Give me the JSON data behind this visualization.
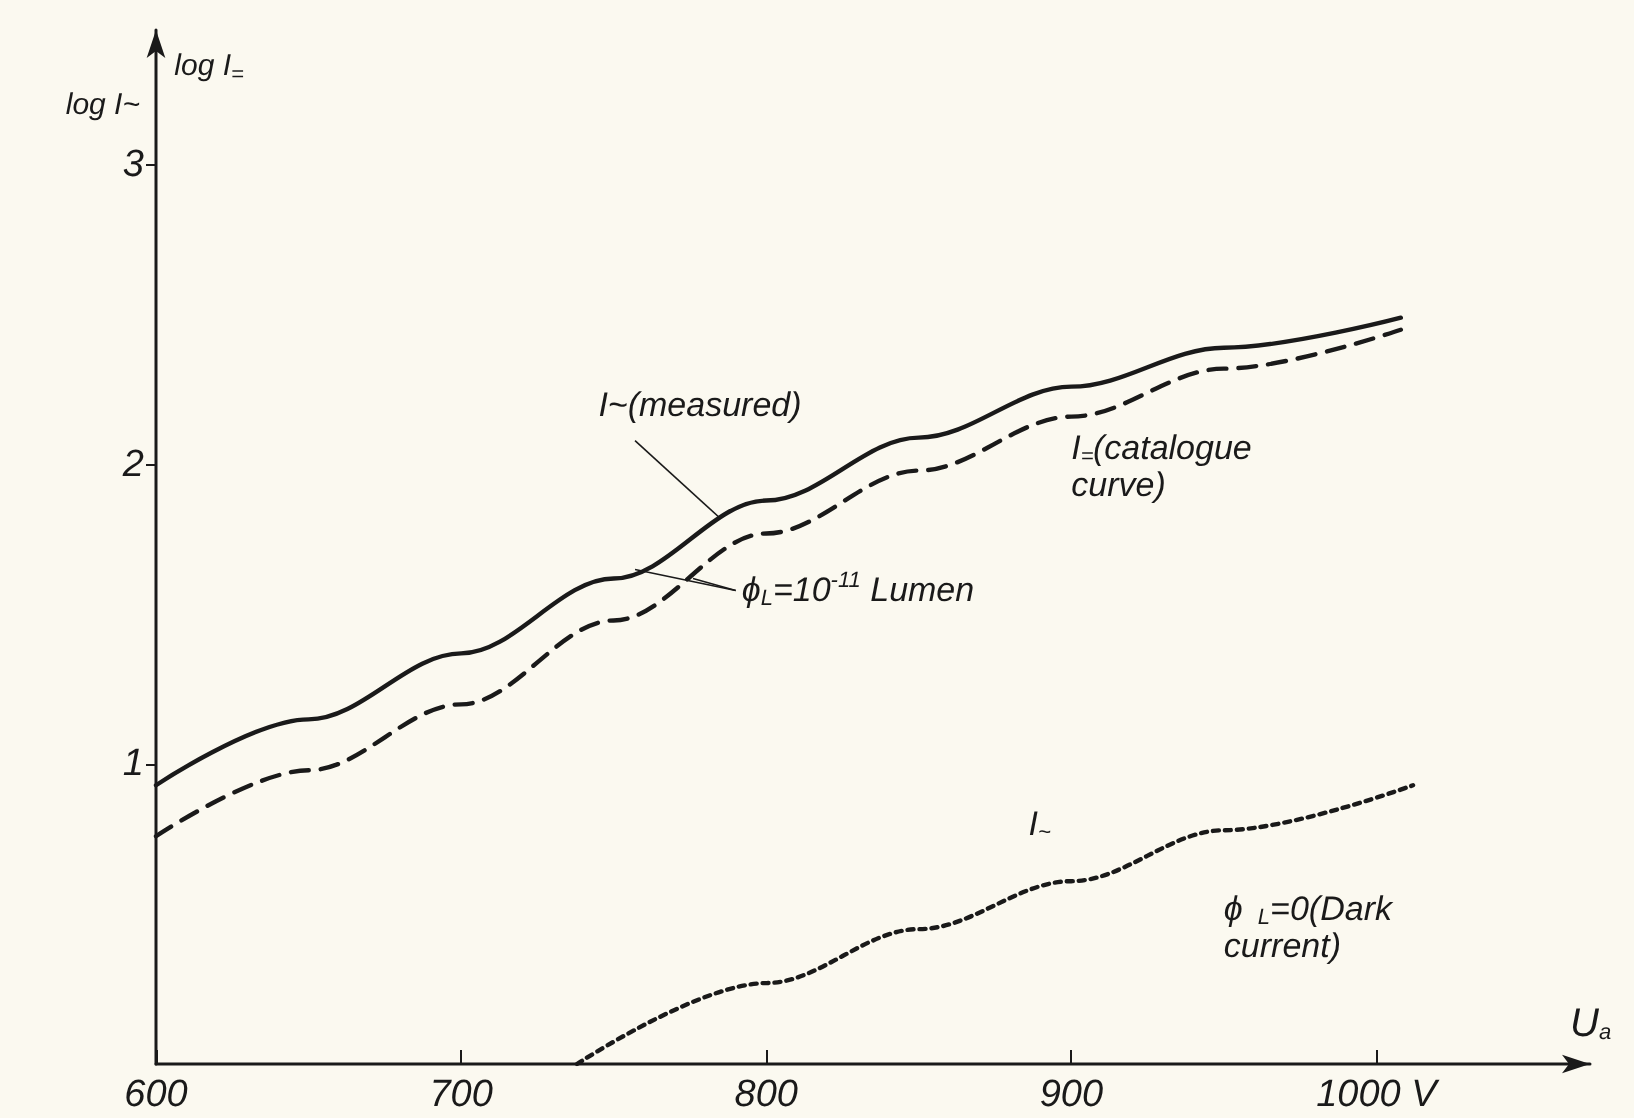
{
  "chart_data": {
    "type": "line",
    "xlabel": "U$_{a}$",
    "ylabel": "log I~",
    "annotations": [
      "log I$_{=}$",
      {
        "text": "ϕ$_{L}$=10$^{-11}$ Lumen",
        "x": 757,
        "y": 1.65
      },
      "ϕ$_{L}$=0(Dark current)"
    ],
    "xlim": [
      600,
      1070
    ],
    "ylim": [
      0,
      3.45
    ],
    "xticks": [
      600,
      700,
      800,
      900,
      {
        "value": 1000,
        "label": "1000 V"
      }
    ],
    "yticks": [
      1,
      2,
      3
    ],
    "grid": false,
    "legend": false,
    "marker": "none",
    "series": [
      {
        "name": "I~(measured)",
        "color": "#1a1a1a",
        "line_style": "solid",
        "x": [
          600,
          650,
          700,
          750,
          800,
          850,
          900,
          950,
          1008
        ],
        "values": [
          0.93,
          1.15,
          1.37,
          1.62,
          1.88,
          2.09,
          2.26,
          2.39,
          2.49
        ]
      },
      {
        "name": "I$_{=}$(catalogue curve)",
        "color": "#1a1a1a",
        "line_style": "dashed",
        "x": [
          600,
          650,
          700,
          750,
          800,
          850,
          900,
          950,
          1008
        ],
        "values": [
          0.76,
          0.98,
          1.2,
          1.48,
          1.77,
          1.98,
          2.16,
          2.32,
          2.45
        ]
      },
      {
        "name": "I$_{~}$",
        "color": "#1a1a1a",
        "line_style": "dotted",
        "x": [
          738,
          800,
          850,
          900,
          950,
          1012
        ],
        "values": [
          0,
          0.27,
          0.45,
          0.61,
          0.78,
          0.93
        ]
      }
    ]
  }
}
